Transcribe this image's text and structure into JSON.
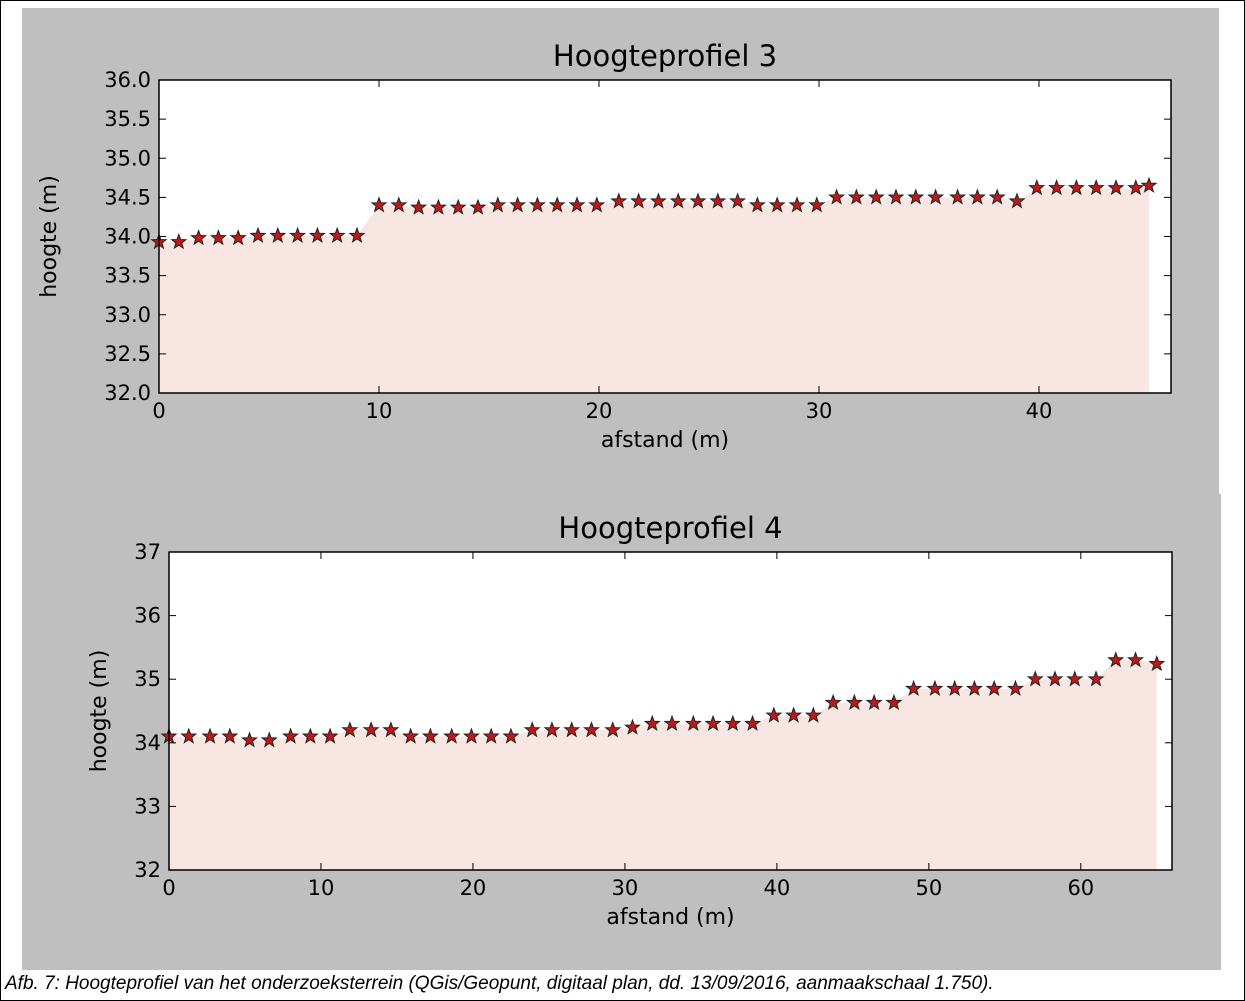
{
  "caption": "Afb. 7: Hoogteprofiel van het onderzoeksterrein (QGis/Geopunt, digitaal plan, dd. 13/09/2016, aanmaakschaal 1.750).",
  "colors": {
    "panel": "#bfbfbf",
    "fill": "#f7e6e1",
    "marker": "#c01818",
    "marker_edge": "#222222"
  },
  "chart_data": [
    {
      "type": "area",
      "title": "Hoogteprofiel 3",
      "xlabel": "afstand (m)",
      "ylabel": "hoogte (m)",
      "xlim": [
        0,
        46
      ],
      "ylim": [
        32.0,
        36.0
      ],
      "xticks": [
        0,
        10,
        20,
        30,
        40
      ],
      "yticks": [
        32.0,
        32.5,
        33.0,
        33.5,
        34.0,
        34.5,
        35.0,
        35.5,
        36.0
      ],
      "ytick_decimals": 1,
      "marker": "star",
      "grid": false,
      "x": [
        0,
        0.9,
        1.8,
        2.7,
        3.6,
        4.5,
        5.4,
        6.3,
        7.2,
        8.1,
        9.0,
        10.0,
        10.9,
        11.8,
        12.7,
        13.6,
        14.5,
        15.4,
        16.3,
        17.2,
        18.1,
        19.0,
        19.9,
        20.9,
        21.8,
        22.7,
        23.6,
        24.5,
        25.4,
        26.3,
        27.2,
        28.1,
        29.0,
        29.9,
        30.8,
        31.7,
        32.6,
        33.5,
        34.4,
        35.3,
        36.3,
        37.2,
        38.1,
        39.0,
        39.9,
        40.8,
        41.7,
        42.6,
        43.5,
        44.4,
        45.0
      ],
      "y": [
        33.93,
        33.93,
        33.98,
        33.98,
        33.98,
        34.01,
        34.01,
        34.01,
        34.01,
        34.01,
        34.01,
        34.4,
        34.4,
        34.37,
        34.37,
        34.37,
        34.37,
        34.4,
        34.4,
        34.4,
        34.4,
        34.4,
        34.4,
        34.45,
        34.45,
        34.45,
        34.45,
        34.45,
        34.45,
        34.45,
        34.4,
        34.4,
        34.4,
        34.4,
        34.5,
        34.5,
        34.5,
        34.5,
        34.5,
        34.5,
        34.5,
        34.5,
        34.5,
        34.45,
        34.62,
        34.62,
        34.62,
        34.62,
        34.62,
        34.62,
        34.65
      ]
    },
    {
      "type": "area",
      "title": "Hoogteprofiel 4",
      "xlabel": "afstand (m)",
      "ylabel": "hoogte (m)",
      "xlim": [
        0,
        66
      ],
      "ylim": [
        32,
        37
      ],
      "xticks": [
        0,
        10,
        20,
        30,
        40,
        50,
        60
      ],
      "yticks": [
        32,
        33,
        34,
        35,
        36,
        37
      ],
      "ytick_decimals": 0,
      "marker": "star",
      "grid": false,
      "x": [
        0,
        1.3,
        2.7,
        4.0,
        5.3,
        6.6,
        8.0,
        9.3,
        10.6,
        11.9,
        13.3,
        14.6,
        15.9,
        17.2,
        18.6,
        19.9,
        21.2,
        22.5,
        23.9,
        25.2,
        26.5,
        27.8,
        29.2,
        30.5,
        31.8,
        33.1,
        34.5,
        35.8,
        37.1,
        38.4,
        39.8,
        41.1,
        42.4,
        43.7,
        45.1,
        46.4,
        47.7,
        49.0,
        50.4,
        51.7,
        53.0,
        54.3,
        55.7,
        57.0,
        58.3,
        59.6,
        61.0,
        62.3,
        63.6,
        65.0
      ],
      "y": [
        34.1,
        34.1,
        34.1,
        34.1,
        34.04,
        34.04,
        34.1,
        34.1,
        34.1,
        34.2,
        34.2,
        34.2,
        34.1,
        34.1,
        34.1,
        34.1,
        34.1,
        34.1,
        34.2,
        34.2,
        34.2,
        34.2,
        34.2,
        34.24,
        34.3,
        34.3,
        34.3,
        34.3,
        34.3,
        34.3,
        34.43,
        34.43,
        34.43,
        34.63,
        34.63,
        34.63,
        34.63,
        34.85,
        34.85,
        34.85,
        34.85,
        34.85,
        34.85,
        35.0,
        35.0,
        35.0,
        35.0,
        35.3,
        35.3,
        35.24
      ]
    }
  ]
}
